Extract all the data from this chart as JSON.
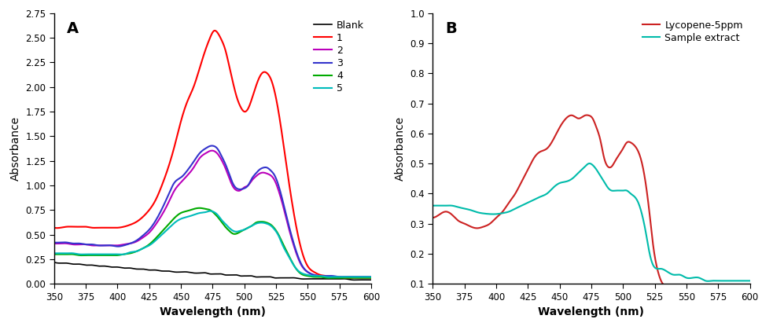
{
  "title_A": "A",
  "title_B": "B",
  "xlabel": "Wavelength (nm)",
  "ylabel": "Absorbance",
  "xlim": [
    350,
    600
  ],
  "A_ylim": [
    0.0,
    2.75
  ],
  "B_ylim": [
    0.1,
    1.0
  ],
  "A_yticks": [
    0.0,
    0.25,
    0.5,
    0.75,
    1.0,
    1.25,
    1.5,
    1.75,
    2.0,
    2.25,
    2.5,
    2.75
  ],
  "B_yticks": [
    0.1,
    0.2,
    0.3,
    0.4,
    0.5,
    0.6,
    0.7,
    0.8,
    0.9,
    1.0
  ],
  "xticks": [
    350,
    375,
    400,
    425,
    450,
    475,
    500,
    525,
    550,
    575,
    600
  ],
  "colors": {
    "blank": "#000000",
    "1": "#FF0000",
    "2": "#BB00BB",
    "3": "#3333CC",
    "4": "#00AA00",
    "5": "#00BBBB",
    "lycopene": "#CC2222",
    "sample": "#00BBAA"
  },
  "legend_A": [
    "Blank",
    "1",
    "2",
    "3",
    "4",
    "5"
  ],
  "legend_B": [
    "Lycopene-5ppm",
    "Sample extract"
  ],
  "A_wavelengths": [
    350,
    355,
    360,
    365,
    370,
    375,
    380,
    385,
    390,
    395,
    400,
    405,
    410,
    415,
    420,
    425,
    430,
    435,
    440,
    445,
    450,
    455,
    460,
    465,
    470,
    473,
    476,
    479,
    482,
    485,
    488,
    491,
    494,
    497,
    500,
    503,
    506,
    509,
    512,
    515,
    518,
    521,
    524,
    527,
    530,
    535,
    540,
    545,
    550,
    555,
    560,
    565,
    570,
    575,
    580,
    585,
    590,
    595,
    600
  ],
  "blank": [
    0.22,
    0.21,
    0.21,
    0.2,
    0.2,
    0.19,
    0.19,
    0.18,
    0.18,
    0.17,
    0.17,
    0.16,
    0.16,
    0.15,
    0.15,
    0.14,
    0.14,
    0.13,
    0.13,
    0.12,
    0.12,
    0.12,
    0.11,
    0.11,
    0.11,
    0.1,
    0.1,
    0.1,
    0.1,
    0.09,
    0.09,
    0.09,
    0.09,
    0.08,
    0.08,
    0.08,
    0.08,
    0.07,
    0.07,
    0.07,
    0.07,
    0.07,
    0.06,
    0.06,
    0.06,
    0.06,
    0.06,
    0.05,
    0.05,
    0.05,
    0.05,
    0.05,
    0.05,
    0.05,
    0.05,
    0.04,
    0.04,
    0.04,
    0.04
  ],
  "s1": [
    0.57,
    0.57,
    0.58,
    0.58,
    0.58,
    0.58,
    0.57,
    0.57,
    0.57,
    0.57,
    0.57,
    0.58,
    0.6,
    0.63,
    0.68,
    0.75,
    0.85,
    1.0,
    1.18,
    1.4,
    1.65,
    1.85,
    2.0,
    2.2,
    2.4,
    2.5,
    2.57,
    2.55,
    2.48,
    2.38,
    2.22,
    2.05,
    1.9,
    1.8,
    1.75,
    1.78,
    1.88,
    2.0,
    2.1,
    2.15,
    2.14,
    2.08,
    1.95,
    1.75,
    1.5,
    1.05,
    0.65,
    0.35,
    0.18,
    0.12,
    0.09,
    0.08,
    0.07,
    0.07,
    0.06,
    0.06,
    0.06,
    0.06,
    0.06
  ],
  "s2": [
    0.41,
    0.41,
    0.41,
    0.4,
    0.4,
    0.4,
    0.39,
    0.39,
    0.39,
    0.39,
    0.39,
    0.4,
    0.41,
    0.43,
    0.47,
    0.52,
    0.6,
    0.7,
    0.82,
    0.95,
    1.03,
    1.1,
    1.18,
    1.28,
    1.33,
    1.35,
    1.35,
    1.32,
    1.26,
    1.18,
    1.08,
    0.99,
    0.95,
    0.95,
    0.98,
    1.0,
    1.05,
    1.09,
    1.12,
    1.13,
    1.12,
    1.1,
    1.05,
    0.95,
    0.82,
    0.57,
    0.35,
    0.19,
    0.12,
    0.09,
    0.08,
    0.07,
    0.07,
    0.07,
    0.07,
    0.07,
    0.07,
    0.07,
    0.07
  ],
  "s3": [
    0.42,
    0.42,
    0.42,
    0.41,
    0.41,
    0.4,
    0.4,
    0.39,
    0.39,
    0.39,
    0.38,
    0.39,
    0.41,
    0.44,
    0.49,
    0.55,
    0.64,
    0.76,
    0.9,
    1.03,
    1.08,
    1.15,
    1.24,
    1.33,
    1.38,
    1.4,
    1.4,
    1.37,
    1.3,
    1.22,
    1.12,
    1.02,
    0.97,
    0.96,
    0.97,
    1.0,
    1.07,
    1.12,
    1.16,
    1.18,
    1.18,
    1.15,
    1.1,
    1.0,
    0.86,
    0.6,
    0.37,
    0.2,
    0.12,
    0.09,
    0.08,
    0.08,
    0.08,
    0.07,
    0.07,
    0.07,
    0.07,
    0.07,
    0.07
  ],
  "s4": [
    0.3,
    0.3,
    0.3,
    0.3,
    0.29,
    0.29,
    0.29,
    0.29,
    0.29,
    0.29,
    0.29,
    0.3,
    0.31,
    0.33,
    0.36,
    0.4,
    0.46,
    0.53,
    0.6,
    0.67,
    0.72,
    0.74,
    0.76,
    0.77,
    0.76,
    0.75,
    0.72,
    0.68,
    0.63,
    0.58,
    0.54,
    0.51,
    0.51,
    0.53,
    0.55,
    0.57,
    0.59,
    0.62,
    0.63,
    0.63,
    0.62,
    0.6,
    0.56,
    0.5,
    0.42,
    0.29,
    0.17,
    0.1,
    0.08,
    0.07,
    0.07,
    0.06,
    0.06,
    0.06,
    0.06,
    0.06,
    0.06,
    0.06,
    0.06
  ],
  "s5": [
    0.31,
    0.31,
    0.31,
    0.31,
    0.3,
    0.3,
    0.3,
    0.3,
    0.3,
    0.3,
    0.3,
    0.3,
    0.32,
    0.33,
    0.36,
    0.39,
    0.44,
    0.5,
    0.56,
    0.62,
    0.66,
    0.68,
    0.7,
    0.72,
    0.73,
    0.74,
    0.73,
    0.7,
    0.65,
    0.61,
    0.57,
    0.54,
    0.53,
    0.54,
    0.55,
    0.57,
    0.59,
    0.61,
    0.62,
    0.62,
    0.61,
    0.59,
    0.55,
    0.49,
    0.4,
    0.28,
    0.17,
    0.11,
    0.09,
    0.08,
    0.08,
    0.07,
    0.07,
    0.07,
    0.07,
    0.07,
    0.07,
    0.07,
    0.07
  ],
  "B_wavelengths": [
    350,
    355,
    360,
    365,
    370,
    375,
    380,
    385,
    390,
    395,
    400,
    405,
    410,
    415,
    420,
    425,
    430,
    435,
    440,
    445,
    450,
    455,
    460,
    465,
    470,
    473,
    476,
    479,
    482,
    485,
    488,
    491,
    494,
    497,
    500,
    503,
    506,
    509,
    512,
    515,
    518,
    521,
    524,
    527,
    530,
    535,
    540,
    545,
    550,
    555,
    560,
    565,
    570,
    575,
    580,
    585,
    590,
    595,
    600
  ],
  "lycopene": [
    0.32,
    0.33,
    0.34,
    0.33,
    0.31,
    0.3,
    0.29,
    0.285,
    0.29,
    0.3,
    0.32,
    0.34,
    0.37,
    0.4,
    0.44,
    0.48,
    0.52,
    0.54,
    0.55,
    0.58,
    0.62,
    0.65,
    0.66,
    0.65,
    0.66,
    0.66,
    0.65,
    0.62,
    0.58,
    0.52,
    0.49,
    0.49,
    0.51,
    0.53,
    0.55,
    0.57,
    0.57,
    0.56,
    0.54,
    0.5,
    0.43,
    0.33,
    0.22,
    0.15,
    0.11,
    0.09,
    0.09,
    0.09,
    0.09,
    0.09,
    0.09,
    0.09,
    0.09,
    0.09,
    0.09,
    0.09,
    0.09,
    0.09,
    0.09
  ],
  "sample": [
    0.36,
    0.36,
    0.36,
    0.36,
    0.355,
    0.35,
    0.345,
    0.338,
    0.334,
    0.332,
    0.332,
    0.335,
    0.34,
    0.35,
    0.36,
    0.37,
    0.38,
    0.39,
    0.4,
    0.42,
    0.435,
    0.44,
    0.45,
    0.47,
    0.49,
    0.5,
    0.495,
    0.48,
    0.46,
    0.44,
    0.42,
    0.41,
    0.41,
    0.41,
    0.41,
    0.41,
    0.4,
    0.39,
    0.37,
    0.33,
    0.27,
    0.2,
    0.16,
    0.15,
    0.15,
    0.14,
    0.13,
    0.13,
    0.12,
    0.12,
    0.12,
    0.11,
    0.11,
    0.11,
    0.11,
    0.11,
    0.11,
    0.11,
    0.11
  ]
}
